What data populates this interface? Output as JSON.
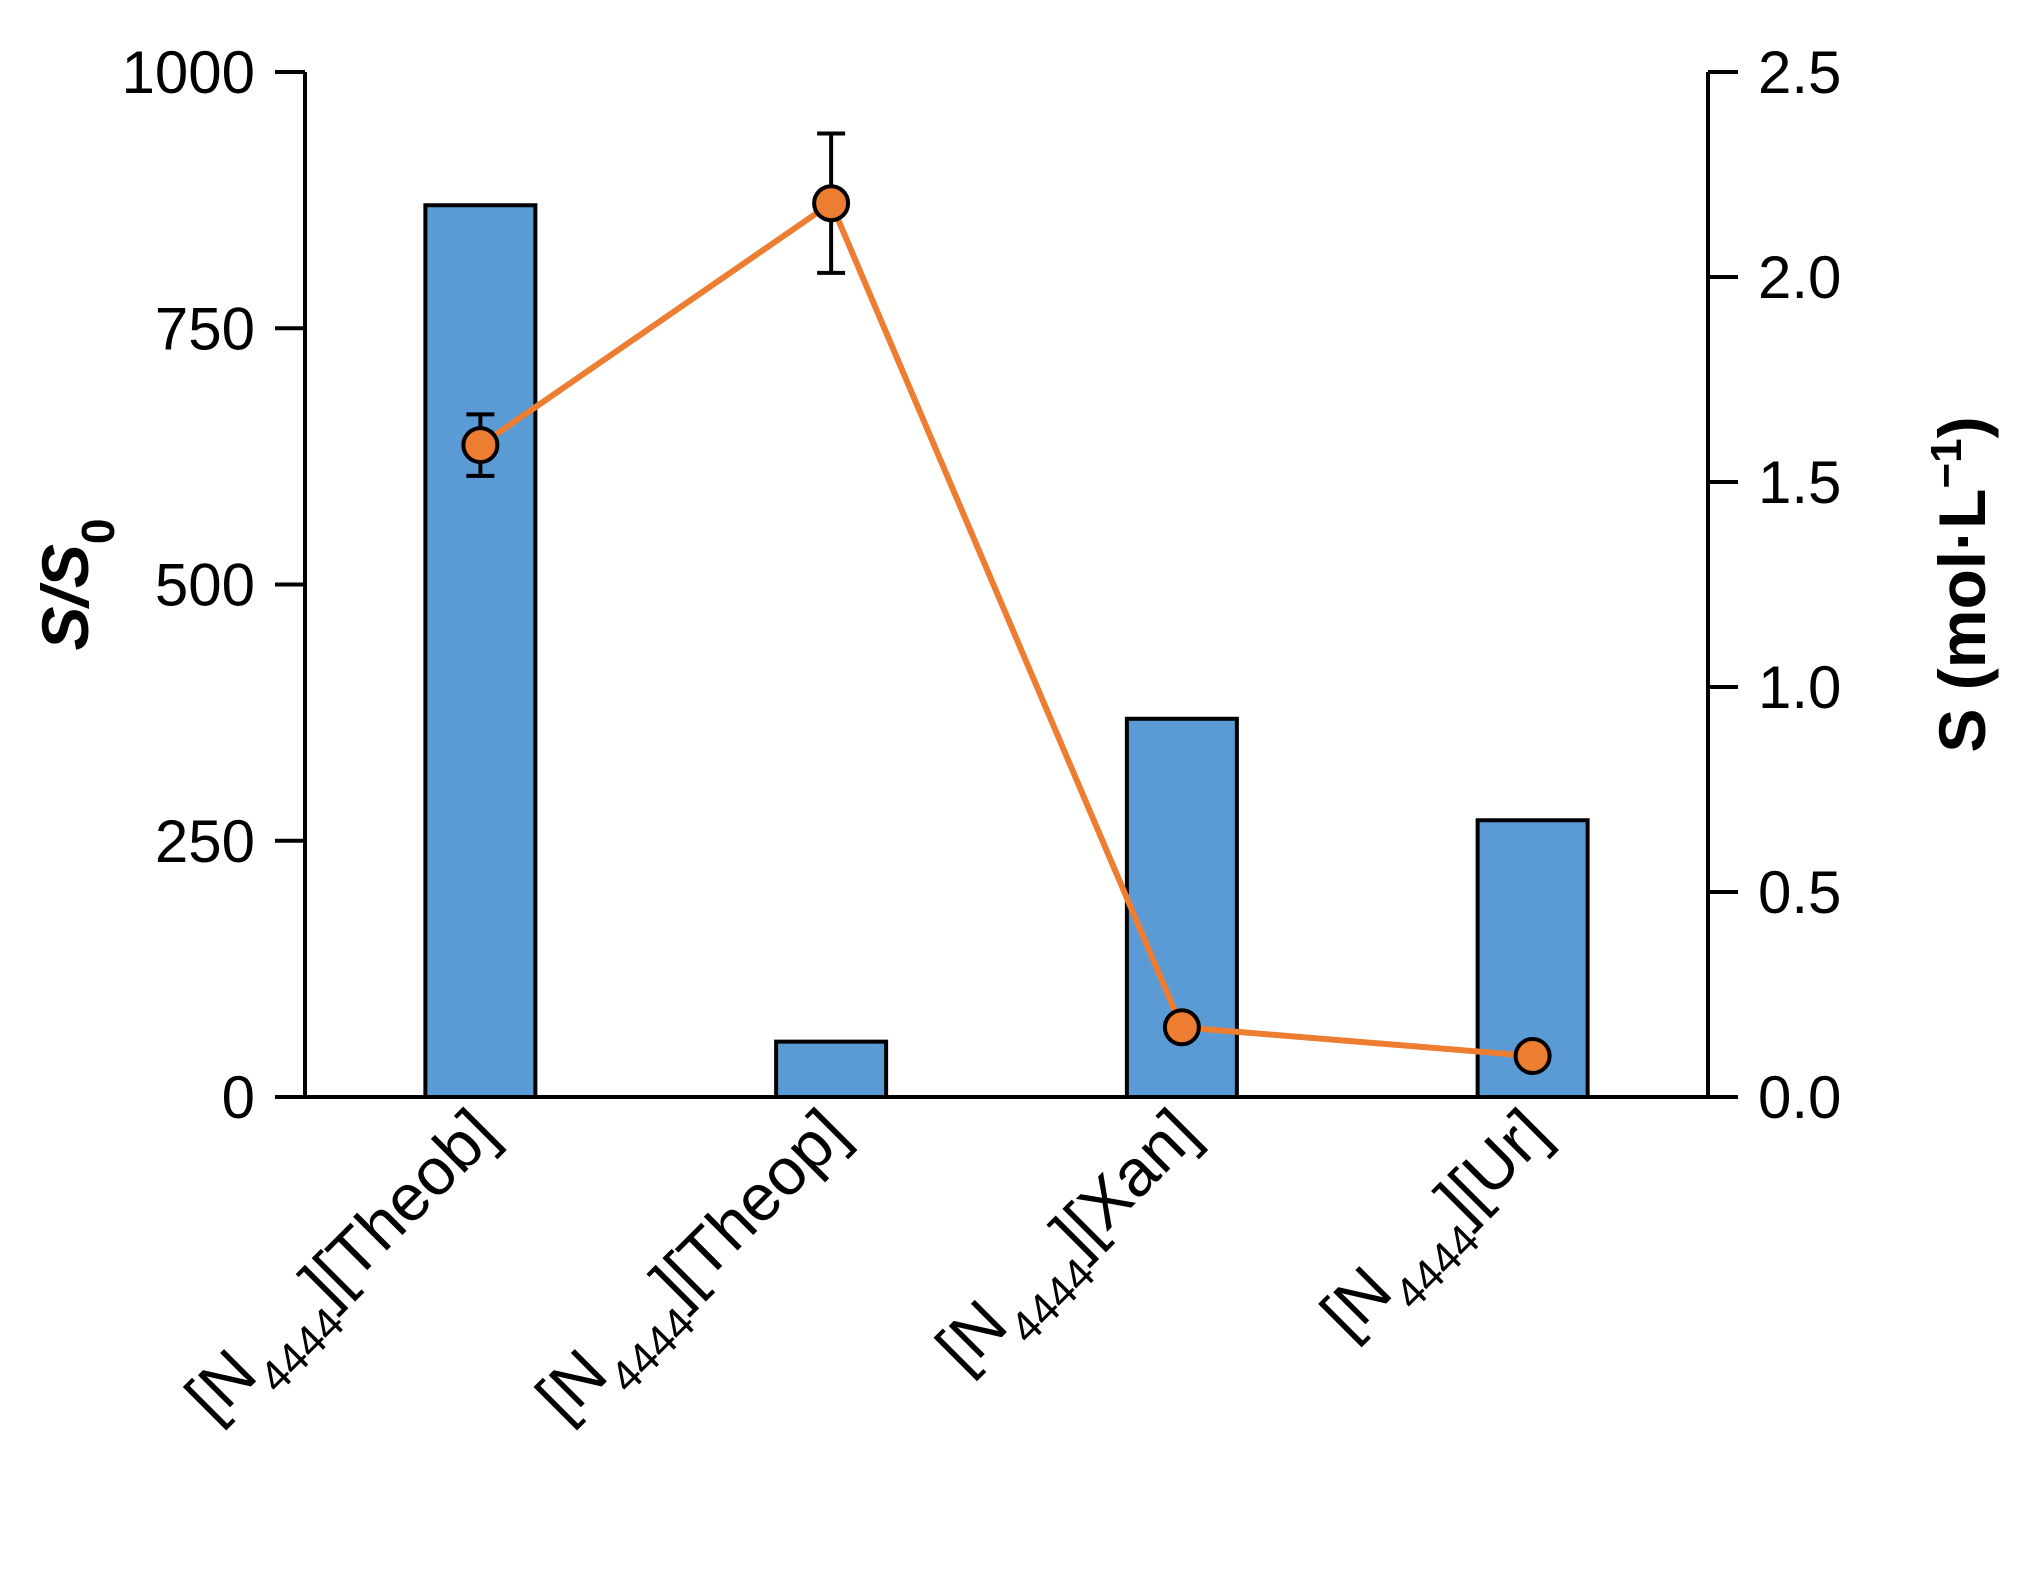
{
  "chart_data": {
    "type": "bar",
    "categories": [
      {
        "base": "[N",
        "sub": "4444",
        "rest": "][Theob]"
      },
      {
        "base": "[N",
        "sub": "4444",
        "rest": "][Theop]"
      },
      {
        "base": "[N",
        "sub": "4444",
        "rest": "][Xan]"
      },
      {
        "base": "[N",
        "sub": "4444",
        "rest": "][Ur]"
      }
    ],
    "series": [
      {
        "type": "bar",
        "axis": "left",
        "color": "#5b9bd5",
        "values": [
          870,
          54,
          369,
          270
        ]
      },
      {
        "type": "line",
        "axis": "right",
        "color": "#ed7d31",
        "values": [
          1.59,
          2.18,
          0.17,
          0.1
        ],
        "errors": [
          0.075,
          0.17,
          null,
          null
        ]
      }
    ],
    "ylabel": {
      "main": "S/S",
      "sub": "0"
    },
    "y2label": {
      "main": "S (mol·L",
      "sup": "−1",
      "tail": ")"
    },
    "ylim": [
      0,
      1000
    ],
    "y2lim": [
      0,
      2.5
    ],
    "yticks": [
      "0",
      "250",
      "500",
      "750",
      "1000"
    ],
    "y2ticks": [
      "0.0",
      "0.5",
      "1.0",
      "1.5",
      "2.0",
      "2.5"
    ],
    "grid": false,
    "legend": "none"
  }
}
